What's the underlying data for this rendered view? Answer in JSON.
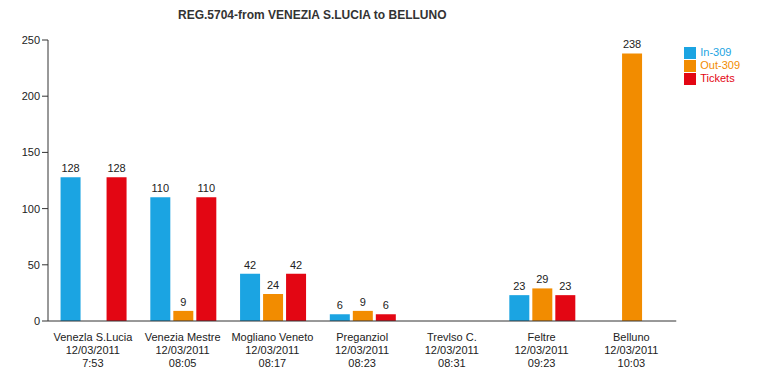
{
  "chart_data": {
    "type": "bar",
    "title": "REG.5704-from VENEZIA S.LUCIA to BELLUNO",
    "categories": [
      "Venezla S.Lucia\n12/03/2011\n7:53",
      "Venezia Mestre\n12/03/2011\n08:05",
      "Mogliano Veneto\n12/03/2011\n08:17",
      "Preganziol\n12/03/2011\n08:23",
      "Trevlso C.\n12/03/2011\n08:31",
      "Feltre\n12/03/2011\n09:23",
      "Belluno\n12/03/2011\n10:03"
    ],
    "series": [
      {
        "name": "In-309",
        "color": "#1ba4e2",
        "values": [
          128,
          110,
          42,
          6,
          0,
          23,
          0
        ]
      },
      {
        "name": "Out-309",
        "color": "#f28c00",
        "values": [
          0,
          9,
          24,
          9,
          0,
          29,
          238
        ]
      },
      {
        "name": "Tickets",
        "color": "#e30613",
        "values": [
          128,
          110,
          42,
          6,
          0,
          23,
          0
        ]
      }
    ],
    "ylim": [
      0,
      250
    ],
    "yticks": [
      0,
      50,
      100,
      150,
      200,
      250
    ],
    "grid": false,
    "legend": "upper right",
    "data_labels": true
  }
}
